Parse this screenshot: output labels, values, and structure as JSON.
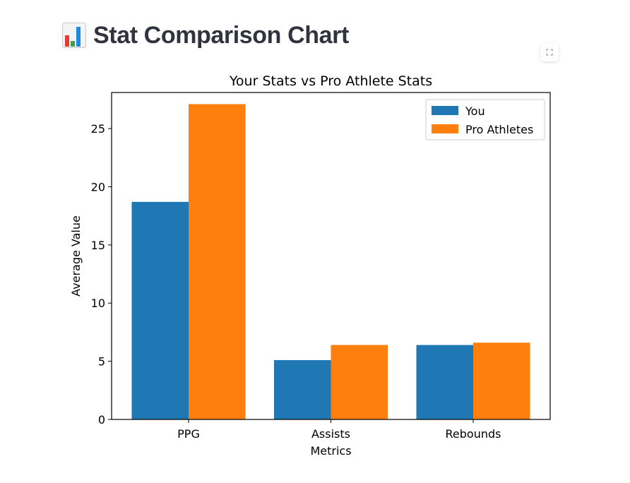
{
  "page": {
    "title_icon": "bar-chart-icon",
    "title": "Stat Comparison Chart"
  },
  "toolbar": {
    "fullscreen_icon": "fullscreen-icon"
  },
  "colors": {
    "you": "#1f77b4",
    "pro": "#ff7f0e",
    "title_text": "#31333f"
  },
  "chart_data": {
    "type": "bar",
    "title": "Your Stats vs Pro Athlete Stats",
    "xlabel": "Metrics",
    "ylabel": "Average Value",
    "categories": [
      "PPG",
      "Assists",
      "Rebounds"
    ],
    "series": [
      {
        "name": "You",
        "values": [
          18.7,
          5.1,
          6.4
        ]
      },
      {
        "name": "Pro Athletes",
        "values": [
          27.1,
          6.4,
          6.6
        ]
      }
    ],
    "ylim": [
      0,
      28.1
    ],
    "yticks": [
      0,
      5,
      10,
      15,
      20,
      25
    ],
    "grid": false,
    "legend_position": "top-right"
  }
}
